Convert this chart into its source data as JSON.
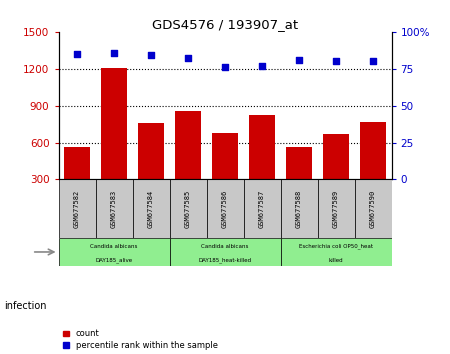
{
  "title": "GDS4576 / 193907_at",
  "samples": [
    "GSM677582",
    "GSM677583",
    "GSM677584",
    "GSM677585",
    "GSM677586",
    "GSM677587",
    "GSM677588",
    "GSM677589",
    "GSM677590"
  ],
  "counts": [
    560,
    1210,
    760,
    860,
    680,
    820,
    560,
    670,
    770
  ],
  "percentiles": [
    85,
    86,
    84,
    82,
    76,
    77,
    81,
    80,
    80
  ],
  "ylim_left": [
    300,
    1500
  ],
  "ylim_right": [
    0,
    100
  ],
  "yticks_left": [
    300,
    600,
    900,
    1200,
    1500
  ],
  "yticks_right": [
    0,
    25,
    50,
    75,
    100
  ],
  "bar_color": "#cc0000",
  "dot_color": "#0000cc",
  "grid_color": "#000000",
  "groups": [
    {
      "label": "Candida albicans\nDAY185_alive",
      "start": 0,
      "end": 3,
      "color": "#90ee90"
    },
    {
      "label": "Candida albicans\nDAY185_heat-killed",
      "start": 3,
      "end": 6,
      "color": "#90ee90"
    },
    {
      "label": "Escherichia coli OP50_heat\nkilled",
      "start": 6,
      "end": 9,
      "color": "#90ee90"
    }
  ],
  "xlabel_infection": "infection",
  "legend_count": "count",
  "legend_percentile": "percentile rank within the sample",
  "tick_label_color_left": "#cc0000",
  "tick_label_color_right": "#0000cc",
  "sample_box_color": "#c8c8c8",
  "ytick_gridlines": [
    600,
    900,
    1200
  ]
}
